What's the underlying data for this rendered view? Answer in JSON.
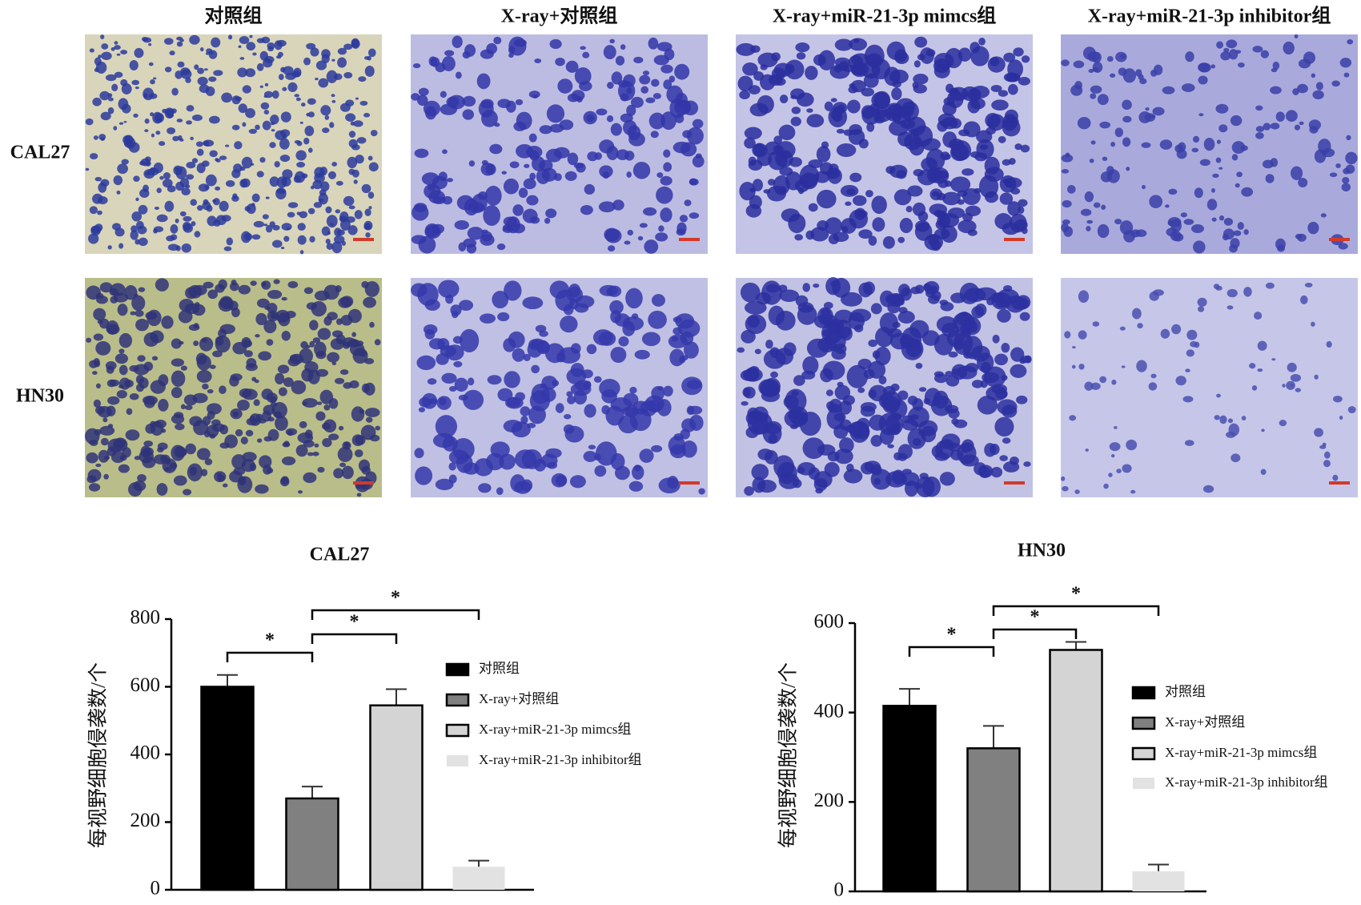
{
  "image_grid": {
    "column_titles": [
      "对照组",
      "X-ray+对照组",
      "X-ray+miR-21-3p mimcs组",
      "X-ray+miR-21-3p inhibitor组"
    ],
    "row_labels": [
      "CAL27",
      "HN30"
    ]
  },
  "chart_data": [
    {
      "type": "bar",
      "title": "CAL27",
      "ylabel": "每视野细胞侵袭数/个",
      "ylim": [
        0,
        800
      ],
      "yticks": [
        0,
        200,
        400,
        600,
        800
      ],
      "series": [
        {
          "name": "对照组",
          "color": "#000000",
          "edgecolor": "#000000",
          "values": [
            600
          ],
          "errors": [
            35
          ]
        },
        {
          "name": "X-ray+对照组",
          "color": "#808080",
          "edgecolor": "#000000",
          "values": [
            270
          ],
          "errors": [
            35
          ]
        },
        {
          "name": "X-ray+miR-21-3p mimcs组",
          "color": "#d4d4d4",
          "edgecolor": "#000000",
          "values": [
            545
          ],
          "errors": [
            48
          ]
        },
        {
          "name": "X-ray+miR-21-3p inhibitor组",
          "color": "#e2e2e2",
          "values": [
            68
          ],
          "errors": [
            18
          ]
        }
      ],
      "significance": [
        {
          "from": 0,
          "to": 1,
          "label": "*"
        },
        {
          "from": 1,
          "to": 2,
          "label": "*"
        },
        {
          "from": 1,
          "to": 3,
          "label": "*"
        }
      ]
    },
    {
      "type": "bar",
      "title": "HN30",
      "ylabel": "每视野细胞侵袭数/个",
      "ylim": [
        0,
        600
      ],
      "yticks": [
        0,
        200,
        400,
        600
      ],
      "series": [
        {
          "name": "对照组",
          "color": "#000000",
          "edgecolor": "#000000",
          "values": [
            415
          ],
          "errors": [
            38
          ]
        },
        {
          "name": "X-ray+对照组",
          "color": "#808080",
          "edgecolor": "#000000",
          "values": [
            320
          ],
          "errors": [
            50
          ]
        },
        {
          "name": "X-ray+miR-21-3p mimcs组",
          "color": "#d4d4d4",
          "edgecolor": "#000000",
          "values": [
            540
          ],
          "errors": [
            18
          ]
        },
        {
          "name": "X-ray+miR-21-3p inhibitor组",
          "color": "#e2e2e2",
          "values": [
            45
          ],
          "errors": [
            15
          ]
        }
      ],
      "significance": [
        {
          "from": 0,
          "to": 1,
          "label": "*"
        },
        {
          "from": 1,
          "to": 2,
          "label": "*"
        },
        {
          "from": 1,
          "to": 3,
          "label": "*"
        }
      ]
    }
  ]
}
